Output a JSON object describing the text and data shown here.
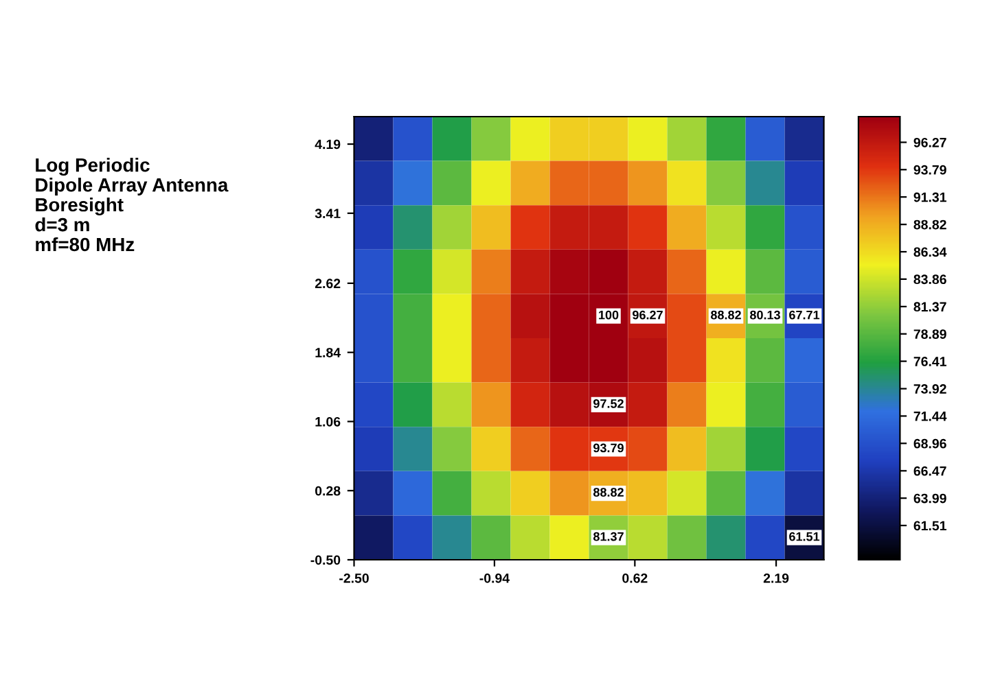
{
  "chart_data": {
    "type": "heatmap",
    "title": "Log Periodic\nDipole Array Antenna\nBoresight\nd=3 m\nmf=80 MHz",
    "xlim": [
      -2.5,
      2.72
    ],
    "ylim": [
      -0.5,
      4.5
    ],
    "xticks": [
      {
        "value": -2.5,
        "label": "-2.50"
      },
      -0.94,
      0.62,
      2.19
    ],
    "yticks": [
      {
        "value": -0.5,
        "label": "-0.50"
      },
      0.28,
      1.06,
      1.84,
      2.62,
      3.41,
      4.19
    ],
    "clim": [
      58.4,
      98.6
    ],
    "cticks": [
      96.27,
      93.79,
      91.31,
      88.82,
      86.34,
      83.86,
      81.37,
      78.89,
      76.41,
      73.92,
      71.44,
      68.96,
      66.47,
      63.99,
      61.51
    ],
    "cells": [
      [
        64,
        69,
        76,
        81,
        85,
        87,
        87,
        85,
        82,
        77,
        70,
        65
      ],
      [
        66,
        72,
        79,
        85,
        89,
        92,
        92,
        90,
        86,
        81,
        74,
        67
      ],
      [
        67,
        75,
        82,
        88,
        94,
        96,
        96,
        94,
        89,
        83,
        77,
        69
      ],
      [
        69,
        77,
        84,
        91,
        96,
        98,
        99,
        96,
        92,
        85,
        79,
        70
      ],
      [
        69,
        78,
        85,
        92,
        97,
        99,
        100,
        96.27,
        93,
        88.82,
        80.13,
        67.71
      ],
      [
        69,
        78,
        85,
        92,
        96,
        99,
        99,
        97,
        93,
        86,
        79,
        71
      ],
      [
        68,
        76,
        83,
        90,
        95,
        97,
        97.52,
        96,
        91,
        85,
        78,
        70
      ],
      [
        67,
        74,
        81,
        87,
        92,
        94,
        93.79,
        93,
        88,
        82,
        76,
        68
      ],
      [
        65,
        71,
        78,
        83,
        87,
        90,
        88.82,
        88,
        84,
        79,
        72,
        66
      ],
      [
        63,
        68,
        74,
        79,
        83,
        85,
        81.37,
        83,
        80,
        75,
        68,
        61.51
      ]
    ],
    "cell_labels": [
      [
        null,
        null,
        null,
        null,
        null,
        null,
        null,
        null,
        null,
        null,
        null,
        null
      ],
      [
        null,
        null,
        null,
        null,
        null,
        null,
        null,
        null,
        null,
        null,
        null,
        null
      ],
      [
        null,
        null,
        null,
        null,
        null,
        null,
        null,
        null,
        null,
        null,
        null,
        null
      ],
      [
        null,
        null,
        null,
        null,
        null,
        null,
        null,
        null,
        null,
        null,
        null,
        null
      ],
      [
        null,
        null,
        null,
        null,
        null,
        null,
        "100",
        "96.27",
        null,
        "88.82",
        "80.13",
        "67.71"
      ],
      [
        null,
        null,
        null,
        null,
        null,
        null,
        null,
        null,
        null,
        null,
        null,
        null
      ],
      [
        null,
        null,
        null,
        null,
        null,
        null,
        "97.52",
        null,
        null,
        null,
        null,
        null
      ],
      [
        null,
        null,
        null,
        null,
        null,
        null,
        "93.79",
        null,
        null,
        null,
        null,
        null
      ],
      [
        null,
        null,
        null,
        null,
        null,
        null,
        "88.82",
        null,
        null,
        null,
        null,
        null
      ],
      [
        null,
        null,
        null,
        null,
        null,
        null,
        "81.37",
        null,
        null,
        null,
        null,
        "61.51"
      ]
    ]
  }
}
